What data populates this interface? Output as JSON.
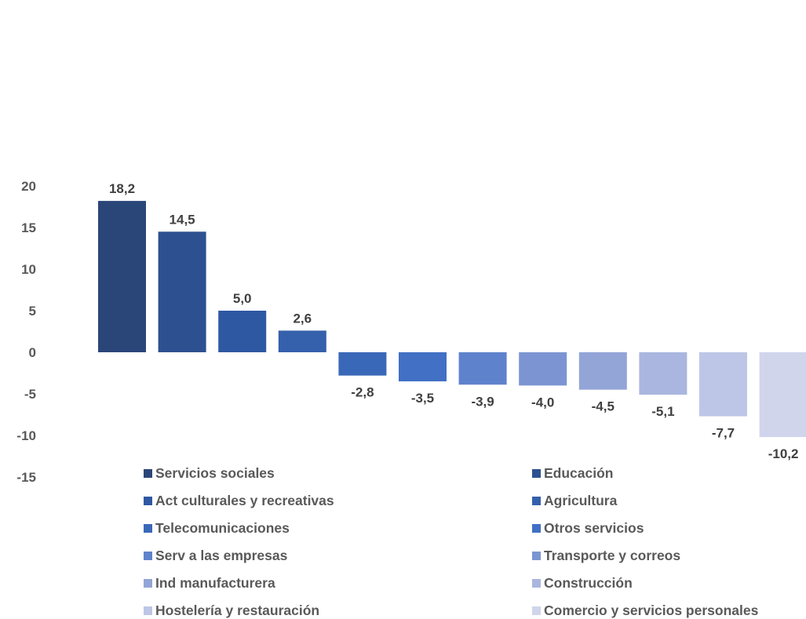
{
  "chart_data": {
    "type": "bar",
    "categories": [
      "Servicios sociales",
      "Educación",
      "Act culturales y recreativas",
      "Agricultura",
      "Telecomunicaciones",
      "Otros servicios",
      "Serv a las empresas",
      "Transporte y correos",
      "Ind manufacturera",
      "Construcción",
      "Hostelería y restauración",
      "Comercio y servicios personales"
    ],
    "values": [
      18.2,
      14.5,
      5.0,
      2.6,
      -2.8,
      -3.5,
      -3.9,
      -4.0,
      -4.5,
      -5.1,
      -7.7,
      -10.2
    ],
    "value_labels": [
      "18,2",
      "14,5",
      "5,0",
      "2,6",
      "-2,8",
      "-3,5",
      "-3,9",
      "-4,0",
      "-4,5",
      "-5,1",
      "-7,7",
      "-10,2"
    ],
    "colors": [
      "#2a4679",
      "#2d5190",
      "#2f58a2",
      "#3460ac",
      "#3a68b8",
      "#4170c4",
      "#5f82cc",
      "#7c95d2",
      "#93a5d7",
      "#aab6df",
      "#bdc6e6",
      "#d0d5ec"
    ],
    "yticks": [
      20,
      15,
      10,
      5,
      0,
      -5,
      -10,
      -15
    ],
    "ylim": [
      -15,
      20
    ],
    "title": "",
    "xlabel": "",
    "ylabel": "",
    "grid": false,
    "legend_position": "bottom-inside, two columns"
  }
}
